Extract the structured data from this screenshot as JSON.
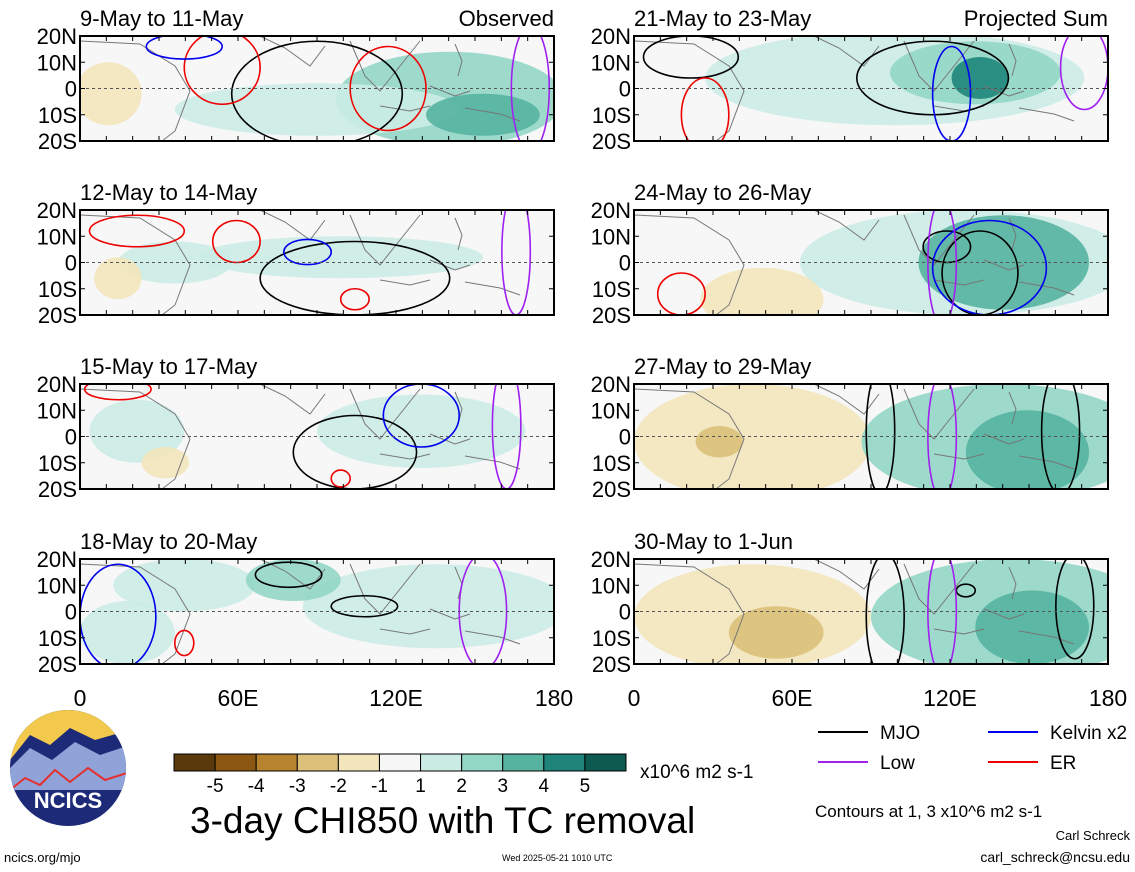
{
  "chart_data": {
    "type": "heatmap",
    "title": "3-day CHI850 with TC removal",
    "header_left": "Observed",
    "header_right": "Projected Sum",
    "y_ticks": [
      "20N",
      "10N",
      "0",
      "10S",
      "20S"
    ],
    "x_ticks": [
      "0",
      "60E",
      "120E",
      "180"
    ],
    "xlim": [
      0,
      180
    ],
    "ylim": [
      -20,
      20
    ],
    "panels": [
      {
        "label": "9-May to 11-May",
        "kind": "Observed"
      },
      {
        "label": "12-May to 14-May",
        "kind": "Observed"
      },
      {
        "label": "15-May to 17-May",
        "kind": "Observed"
      },
      {
        "label": "18-May to 20-May",
        "kind": "Observed"
      },
      {
        "label": "21-May to 23-May",
        "kind": "Projected Sum"
      },
      {
        "label": "24-May to 26-May",
        "kind": "Projected Sum"
      },
      {
        "label": "27-May to 29-May",
        "kind": "Projected Sum"
      },
      {
        "label": "30-May to 1-Jun",
        "kind": "Projected Sum"
      }
    ],
    "colorbar": {
      "labels": [
        "-5",
        "-4",
        "-3",
        "-2",
        "-1",
        "1",
        "2",
        "3",
        "4",
        "5"
      ],
      "colors": [
        "#5a3a0d",
        "#8c5712",
        "#b8832f",
        "#dcc07a",
        "#f3e6bd",
        "#f7f7f7",
        "#cbece4",
        "#92d6c6",
        "#55b3a0",
        "#1f857a",
        "#0f5a50"
      ],
      "units": "x10^6 m2 s-1"
    },
    "legend": [
      {
        "name": "MJO",
        "color": "#000000"
      },
      {
        "name": "Kelvin x2",
        "color": "#0000ee"
      },
      {
        "name": "Low",
        "color": "#a020f0"
      },
      {
        "name": "ER",
        "color": "#ee0000"
      }
    ],
    "contour_note": "Contours at 1, 3 x10^6 m2 s-1"
  },
  "footer": {
    "url": "ncics.org/mjo",
    "timestamp": "Wed 2025-05-21 1010 UTC",
    "author": "Carl Schreck",
    "email": "carl_schreck@ncsu.edu",
    "logo_text": "NCICS"
  }
}
